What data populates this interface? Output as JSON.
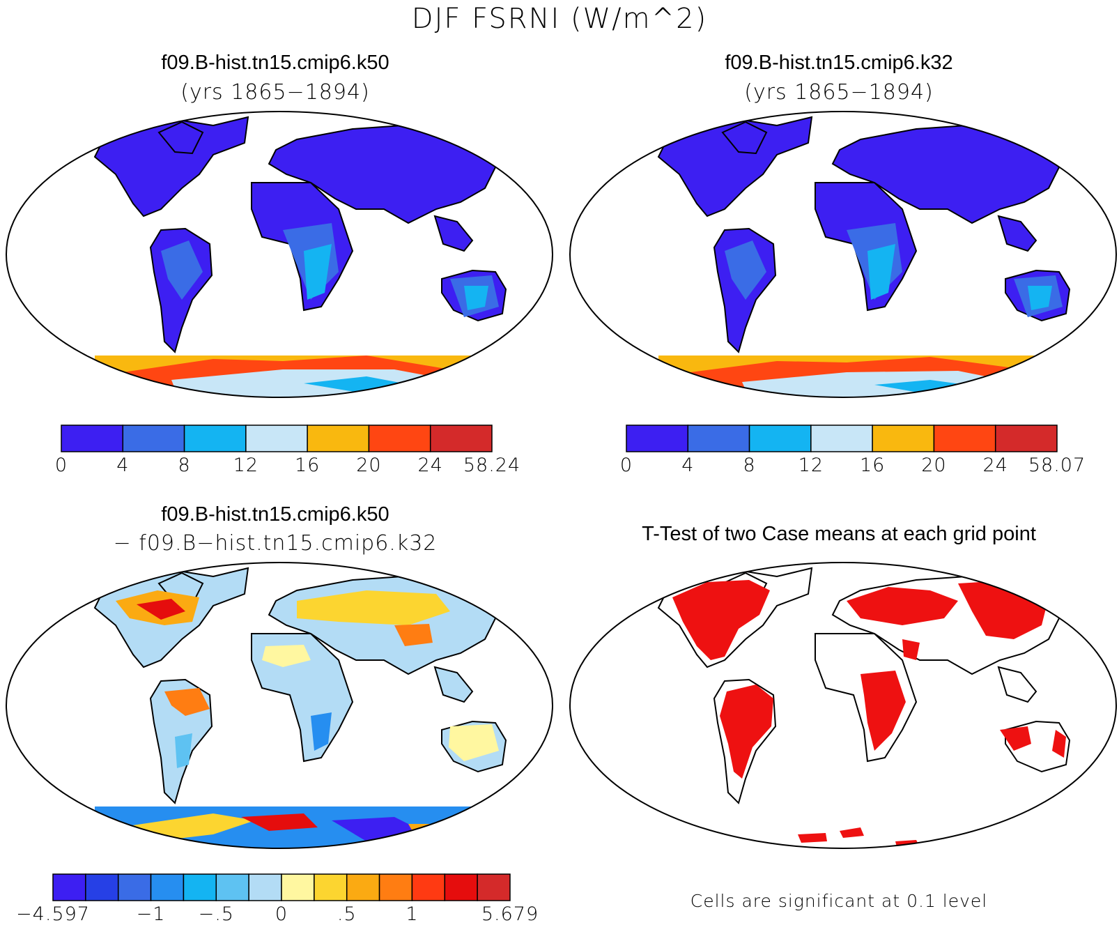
{
  "title": "DJF FSRNI (W/m^2)",
  "panels": [
    {
      "title": "f09.B-hist.tn15.cmip6.k50",
      "subtitle": "(yrs 1865−1894)"
    },
    {
      "title": "f09.B-hist.tn15.cmip6.k32",
      "subtitle": "(yrs 1865−1894)"
    },
    {
      "title": "f09.B-hist.tn15.cmip6.k50",
      "subtitle": "− f09.B−hist.tn15.cmip6.k32"
    },
    {
      "title": "T-Test of two Case means at each grid point",
      "subtitle": ""
    }
  ],
  "colorbars": {
    "case1": {
      "labels": [
        "0",
        "4",
        "8",
        "12",
        "16",
        "20",
        "24",
        "58.24"
      ],
      "colors": [
        "#3d1ff2",
        "#3a6ce6",
        "#14b4f2",
        "#c8e6f7",
        "#f9b80f",
        "#ff4612",
        "#d42a2a"
      ]
    },
    "case2": {
      "labels": [
        "0",
        "4",
        "8",
        "12",
        "16",
        "20",
        "24",
        "58.07"
      ],
      "colors": [
        "#3d1ff2",
        "#3a6ce6",
        "#14b4f2",
        "#c8e6f7",
        "#f9b80f",
        "#ff4612",
        "#d42a2a"
      ]
    },
    "diff": {
      "labels": [
        "−4.597",
        "−1",
        "−.5",
        "0",
        ".5",
        "1",
        "5.679"
      ],
      "colors": [
        "#3d1ff2",
        "#2640e6",
        "#3a6ce6",
        "#268ef0",
        "#14b4f2",
        "#5ec2f2",
        "#b3dcf5",
        "#fff7a0",
        "#fcd530",
        "#fbaa12",
        "#ff7d12",
        "#ff3a12",
        "#e50d0d",
        "#d42a2a"
      ]
    }
  },
  "significance_note": "Cells are significant at 0.1 level",
  "significance_color": "#ee1111"
}
